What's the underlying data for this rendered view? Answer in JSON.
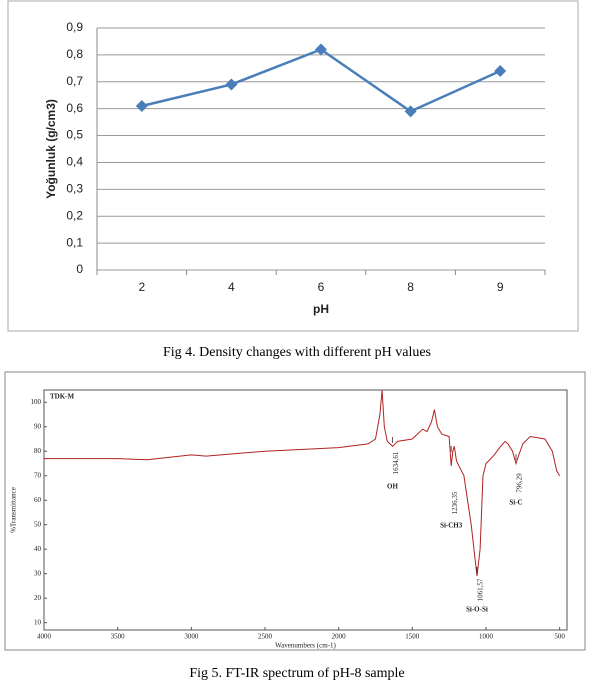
{
  "chart_data": [
    {
      "type": "line",
      "caption": "Fig 4. Density changes with different pH values",
      "categories": [
        "2",
        "4",
        "6",
        "8",
        "9"
      ],
      "values": [
        0.61,
        0.69,
        0.82,
        0.59,
        0.74
      ],
      "color": "#4a7ebb",
      "xlabel": "pH",
      "ylabel": "Yoğunluk (g/cm3)",
      "ylim": [
        0,
        0.9
      ],
      "yticks": [
        0,
        {
          "value": 0.1,
          "label": "0,1"
        },
        {
          "value": 0.2,
          "label": "0,2"
        },
        {
          "value": 0.3,
          "label": "0,3"
        },
        {
          "value": 0.4,
          "label": "0,4"
        },
        {
          "value": 0.5,
          "label": "0,5"
        },
        {
          "value": 0.6,
          "label": "0,6"
        },
        {
          "value": 0.7,
          "label": "0,7"
        },
        {
          "value": 0.8,
          "label": "0,8"
        },
        {
          "value": 0.9,
          "label": "0,9"
        }
      ],
      "grid": true
    },
    {
      "type": "line",
      "title": "TDK-M",
      "caption": "Fig 5. FT-IR spectrum of pH-8 sample",
      "xlabel": "Wavenumbers (cm-1)",
      "ylabel": "%Transmittance",
      "color": "#b22222",
      "x": [
        4000,
        3500,
        3300,
        3000,
        2900,
        2500,
        2000,
        1800,
        1750,
        1720,
        1705,
        1690,
        1670,
        1634,
        1600,
        1500,
        1430,
        1400,
        1370,
        1350,
        1330,
        1300,
        1250,
        1236,
        1225,
        1215,
        1200,
        1150,
        1100,
        1061,
        1040,
        1020,
        1000,
        950,
        900,
        870,
        850,
        820,
        796,
        780,
        750,
        700,
        600,
        550,
        520,
        500
      ],
      "values": [
        77,
        77,
        76.5,
        78.5,
        78,
        80,
        81.5,
        83,
        85,
        95,
        105,
        90,
        84,
        82,
        84,
        85,
        89,
        88,
        92,
        97,
        90,
        87,
        86,
        74,
        80,
        82,
        76,
        70,
        50,
        29,
        40,
        70,
        75,
        78,
        82,
        84,
        83,
        80,
        75,
        78,
        83,
        86,
        85,
        80,
        72,
        70
      ],
      "xlim": [
        4000,
        450
      ],
      "ylim": [
        7,
        105
      ],
      "xticks": [
        4000,
        3500,
        3000,
        2500,
        2000,
        1500,
        1000,
        500
      ],
      "yticks": [
        10,
        20,
        30,
        40,
        50,
        60,
        70,
        80,
        90,
        100
      ],
      "annotations": [
        {
          "value": 1634.61,
          "label": "1634,61",
          "name": "OH"
        },
        {
          "value": 1236.35,
          "label": "1236,35",
          "name": "Si-CH3"
        },
        {
          "value": 1061.57,
          "label": "1061,57",
          "name": "Si-O-Si"
        },
        {
          "value": 796.29,
          "label": "796,29",
          "name": "Si-C"
        }
      ]
    }
  ]
}
